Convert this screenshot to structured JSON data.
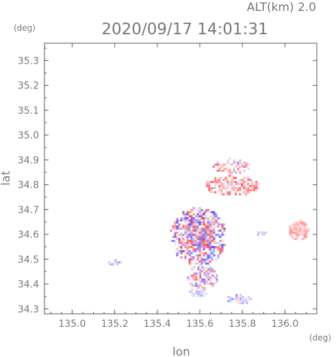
{
  "header": {
    "altitude_label": "ALT(km) 2.0",
    "timestamp": "2020/09/17 14:01:31"
  },
  "axes": {
    "y_unit": "(deg)",
    "x_unit": "(deg)",
    "ylabel": "lat",
    "xlabel": "lon"
  },
  "chart_data": {
    "type": "heatmap",
    "title": "2020/09/17 14:01:31",
    "subtitle": "ALT(km) 2.0",
    "xlabel": "lon",
    "ylabel": "lat",
    "x_unit": "(deg)",
    "y_unit": "(deg)",
    "xlim": [
      134.87,
      136.15
    ],
    "ylim": [
      34.28,
      35.37
    ],
    "x_ticks": [
      135.0,
      135.2,
      135.4,
      135.6,
      135.8,
      136.0
    ],
    "x_tick_labels": [
      "135.0",
      "135.2",
      "135.4",
      "135.6",
      "135.8",
      "136.0"
    ],
    "y_ticks": [
      34.3,
      34.4,
      34.5,
      34.6,
      34.7,
      34.8,
      34.9,
      35.0,
      35.1,
      35.2,
      35.3
    ],
    "y_tick_labels": [
      "34.3",
      "34.4",
      "34.5",
      "34.6",
      "34.7",
      "34.8",
      "34.9",
      "35.0",
      "35.1",
      "35.2",
      "35.3"
    ],
    "grid": false,
    "colors": {
      "positive": "#ff5a5a",
      "negative": "#5a5aff",
      "neutral": "#e8e8ff",
      "frame": "#555555",
      "text": "#777777"
    },
    "clusters": [
      {
        "id": "main-core",
        "lon": [
          135.46,
          135.72
        ],
        "lat": [
          34.48,
          34.71
        ],
        "density": 0.85,
        "value_range": [
          -1,
          1
        ]
      },
      {
        "id": "south-tail",
        "lon": [
          135.54,
          135.68
        ],
        "lat": [
          34.38,
          34.48
        ],
        "density": 0.7,
        "value_range": [
          -0.8,
          0.8
        ]
      },
      {
        "id": "north-east-band",
        "lon": [
          135.62,
          135.88
        ],
        "lat": [
          34.76,
          34.84
        ],
        "density": 0.8,
        "value_range": [
          -0.2,
          0.9
        ]
      },
      {
        "id": "north-east-top",
        "lon": [
          135.66,
          135.84
        ],
        "lat": [
          34.85,
          34.91
        ],
        "density": 0.55,
        "value_range": [
          -0.5,
          0.9
        ]
      },
      {
        "id": "east-isolated",
        "lon": [
          136.01,
          136.11
        ],
        "lat": [
          34.58,
          34.66
        ],
        "density": 0.9,
        "value_range": [
          0,
          0.6
        ]
      },
      {
        "id": "south-east-blob",
        "lon": [
          135.72,
          135.84
        ],
        "lat": [
          34.32,
          34.36
        ],
        "density": 0.85,
        "value_range": [
          -0.6,
          0.2
        ]
      },
      {
        "id": "south-blob",
        "lon": [
          135.55,
          135.63
        ],
        "lat": [
          34.35,
          34.39
        ],
        "density": 0.9,
        "value_range": [
          -0.4,
          0.1
        ]
      },
      {
        "id": "west-small",
        "lon": [
          135.16,
          135.23
        ],
        "lat": [
          34.48,
          34.5
        ],
        "density": 0.9,
        "value_range": [
          -0.6,
          0
        ]
      },
      {
        "id": "mid-east",
        "lon": [
          135.86,
          135.92
        ],
        "lat": [
          34.6,
          34.62
        ],
        "density": 0.8,
        "value_range": [
          -0.5,
          0.7
        ]
      }
    ]
  }
}
